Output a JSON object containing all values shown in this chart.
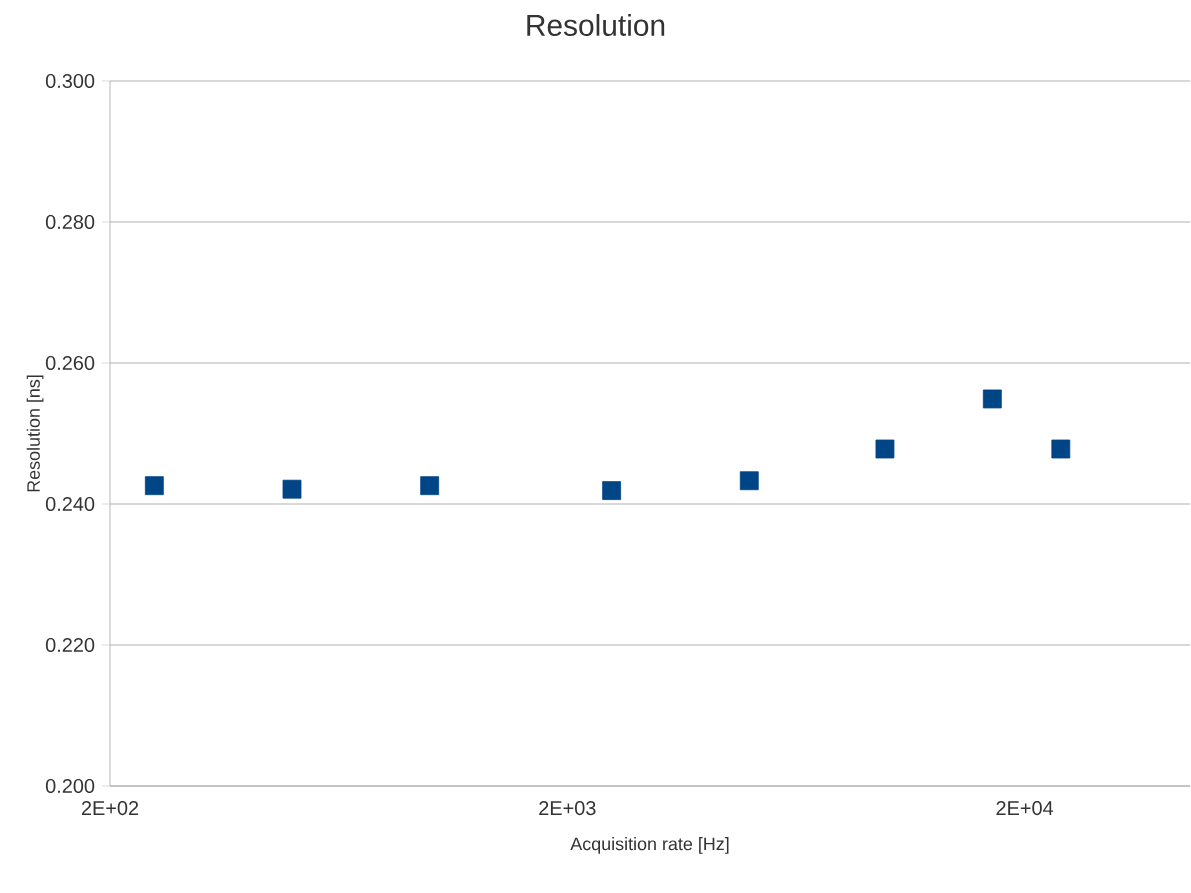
{
  "chart_data": {
    "type": "scatter",
    "title": "Resolution",
    "xlabel": "Acquisition rate [Hz]",
    "ylabel": "Resolution [ns]",
    "x": [
      250,
      500,
      1000,
      2500,
      5000,
      9900,
      17000,
      24000
    ],
    "values": [
      0.2426,
      0.2421,
      0.2426,
      0.2419,
      0.2433,
      0.2478,
      0.2549,
      0.2478
    ],
    "color": "#004586",
    "marker": "square",
    "log": "x",
    "grid": "y",
    "xlim": [
      200,
      46000
    ],
    "ylim": [
      0.2,
      0.3
    ],
    "xticks": [
      {
        "value": 200,
        "label": "2E+02"
      },
      {
        "value": 2000,
        "label": "2E+03"
      },
      {
        "value": 20000,
        "label": "2E+04"
      }
    ],
    "yticks": [
      {
        "value": 0.2,
        "label": "0.200"
      },
      {
        "value": 0.22,
        "label": "0.220"
      },
      {
        "value": 0.24,
        "label": "0.240"
      },
      {
        "value": 0.26,
        "label": "0.260"
      },
      {
        "value": 0.28,
        "label": "0.280"
      },
      {
        "value": 0.3,
        "label": "0.300"
      }
    ]
  }
}
